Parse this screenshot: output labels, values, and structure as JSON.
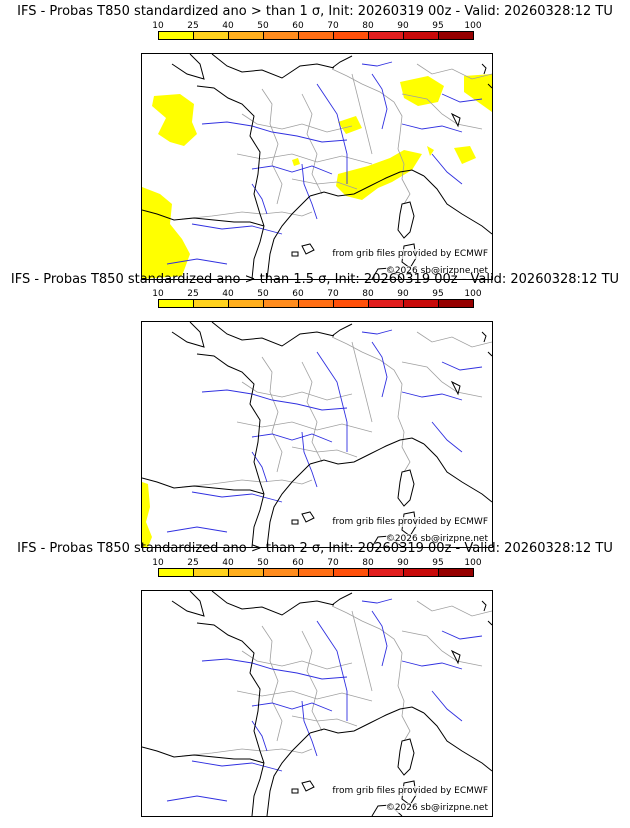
{
  "palette": [
    "#ffff00",
    "#ffd21e",
    "#ffae1e",
    "#ff8c1e",
    "#ff6e14",
    "#ff500a",
    "#e11e1e",
    "#c80a0a",
    "#960000",
    "#640000"
  ],
  "scale_ticks": [
    "10",
    "25",
    "40",
    "50",
    "60",
    "70",
    "80",
    "90",
    "95",
    "100"
  ],
  "credits": {
    "source": "from grib files provided by ECMWF",
    "copyright": "©2026 sb@irizpne.net"
  },
  "panels": [
    {
      "title": "IFS - Probas T850  standardized ano > than 1 σ, Init: 20260319 00z - Valid: 20260328:12 TU"
    },
    {
      "title": "IFS - Probas T850  standardized ano > than 1.5 σ, Init: 20260319 00z - Valid: 20260328:12 TU"
    },
    {
      "title": "IFS - Probas T850  standardized ano > than 2 σ, Init: 20260319 00z - Valid: 20260328:12 TU"
    }
  ],
  "map_colors": {
    "coast": "#000000",
    "rivers": "#3030e0",
    "borders": "#a0a0a0",
    "probability_fill": "#ffff00"
  }
}
